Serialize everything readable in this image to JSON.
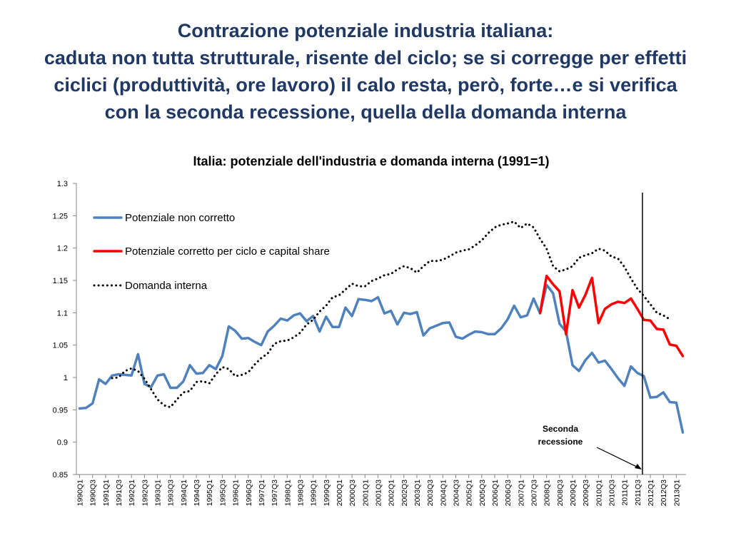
{
  "slide": {
    "title_lines": [
      "Contrazione potenziale industria italiana:",
      "caduta non tutta strutturale, risente del ciclo; se si corregge per effetti",
      "ciclici (produttività, ore lavoro) il calo resta, però, forte…e si verifica",
      "con la seconda recessione, quella della domanda interna"
    ]
  },
  "chart_data": {
    "type": "line",
    "title": "Italia: potenziale dell'industria e domanda interna (1991=1)",
    "xlabel": "",
    "ylabel": "",
    "ylim": [
      0.85,
      1.3
    ],
    "yticks": [
      "1.3",
      "1.25",
      "1.2",
      "1.15",
      "1.1",
      "1.05",
      "1",
      "0.95",
      "0.9",
      "0.85"
    ],
    "x_tick_labels": [
      "1990Q1",
      "1990Q3",
      "1991Q1",
      "1991Q3",
      "1992Q1",
      "1992Q3",
      "1993Q1",
      "1993Q3",
      "1994Q1",
      "1994Q3",
      "1995Q1",
      "1995Q3",
      "1996Q1",
      "1996Q3",
      "1997Q1",
      "1997Q3",
      "1998Q1",
      "1998Q3",
      "1999Q1",
      "1999Q3",
      "2000Q1",
      "2000Q3",
      "2001Q1",
      "2001Q3",
      "2002Q1",
      "2002Q3",
      "2003Q1",
      "2003Q3",
      "2004Q1",
      "2004Q3",
      "2005Q1",
      "2005Q3",
      "2006Q1",
      "2006Q3",
      "2007Q1",
      "2007Q3",
      "2008Q1",
      "2008Q3",
      "2009Q1",
      "2009Q3",
      "2010Q1",
      "2010Q3",
      "2011Q1",
      "2011Q3",
      "2012Q1",
      "2012Q3",
      "2013Q1"
    ],
    "x_start": "1990Q1",
    "grid": false,
    "legend_position": "top-left",
    "series": [
      {
        "name": "Potenziale non corretto",
        "color": "#4f81bd",
        "style": "solid",
        "start": "1990Q1",
        "values": [
          0.952,
          0.953,
          0.96,
          0.997,
          0.99,
          1.003,
          1.005,
          1.004,
          1.003,
          1.036,
          0.99,
          0.985,
          1.003,
          1.005,
          0.984,
          0.984,
          0.994,
          1.019,
          1.006,
          1.007,
          1.019,
          1.013,
          1.033,
          1.079,
          1.072,
          1.06,
          1.061,
          1.055,
          1.05,
          1.071,
          1.08,
          1.091,
          1.088,
          1.096,
          1.099,
          1.087,
          1.095,
          1.071,
          1.094,
          1.078,
          1.078,
          1.108,
          1.095,
          1.121,
          1.12,
          1.118,
          1.124,
          1.099,
          1.103,
          1.082,
          1.1,
          1.098,
          1.101,
          1.065,
          1.076,
          1.08,
          1.084,
          1.085,
          1.063,
          1.06,
          1.066,
          1.071,
          1.07,
          1.067,
          1.067,
          1.076,
          1.09,
          1.111,
          1.093,
          1.096,
          1.122,
          1.099,
          1.143,
          1.13,
          1.083,
          1.071,
          1.019,
          1.01,
          1.027,
          1.038,
          1.023,
          1.026,
          1.013,
          0.999,
          0.987,
          1.017,
          1.007,
          1.002,
          0.969,
          0.97,
          0.977,
          0.962,
          0.961,
          0.915
        ]
      },
      {
        "name": "Potenziale corretto per ciclo e capital share",
        "color": "#ff0000",
        "style": "solid",
        "start": "2007Q4",
        "values": [
          1.1,
          1.157,
          1.144,
          1.133,
          1.067,
          1.135,
          1.108,
          1.128,
          1.154,
          1.084,
          1.106,
          1.113,
          1.117,
          1.115,
          1.122,
          1.106,
          1.089,
          1.088,
          1.075,
          1.074,
          1.051,
          1.049,
          1.033
        ]
      },
      {
        "name": "Domanda interna",
        "color": "#000000",
        "style": "dotted",
        "start": "1991Q2",
        "values": [
          0.999,
          1.0,
          1.01,
          1.014,
          1.01,
          0.998,
          0.982,
          0.966,
          0.957,
          0.954,
          0.966,
          0.977,
          0.979,
          0.993,
          0.994,
          0.991,
          1.005,
          1.016,
          1.013,
          1.002,
          1.004,
          1.008,
          1.02,
          1.03,
          1.037,
          1.052,
          1.056,
          1.057,
          1.062,
          1.069,
          1.082,
          1.089,
          1.102,
          1.111,
          1.124,
          1.127,
          1.136,
          1.145,
          1.141,
          1.141,
          1.149,
          1.153,
          1.158,
          1.16,
          1.167,
          1.172,
          1.169,
          1.162,
          1.172,
          1.18,
          1.18,
          1.182,
          1.187,
          1.193,
          1.196,
          1.198,
          1.204,
          1.212,
          1.223,
          1.232,
          1.236,
          1.238,
          1.241,
          1.231,
          1.238,
          1.232,
          1.214,
          1.199,
          1.172,
          1.164,
          1.167,
          1.172,
          1.185,
          1.189,
          1.192,
          1.199,
          1.196,
          1.187,
          1.184,
          1.171,
          1.153,
          1.137,
          1.126,
          1.113,
          1.1,
          1.096,
          1.09
        ]
      }
    ],
    "annotation": {
      "lines": [
        "Seconda",
        "recessione"
      ],
      "target": "2011Q4"
    }
  }
}
